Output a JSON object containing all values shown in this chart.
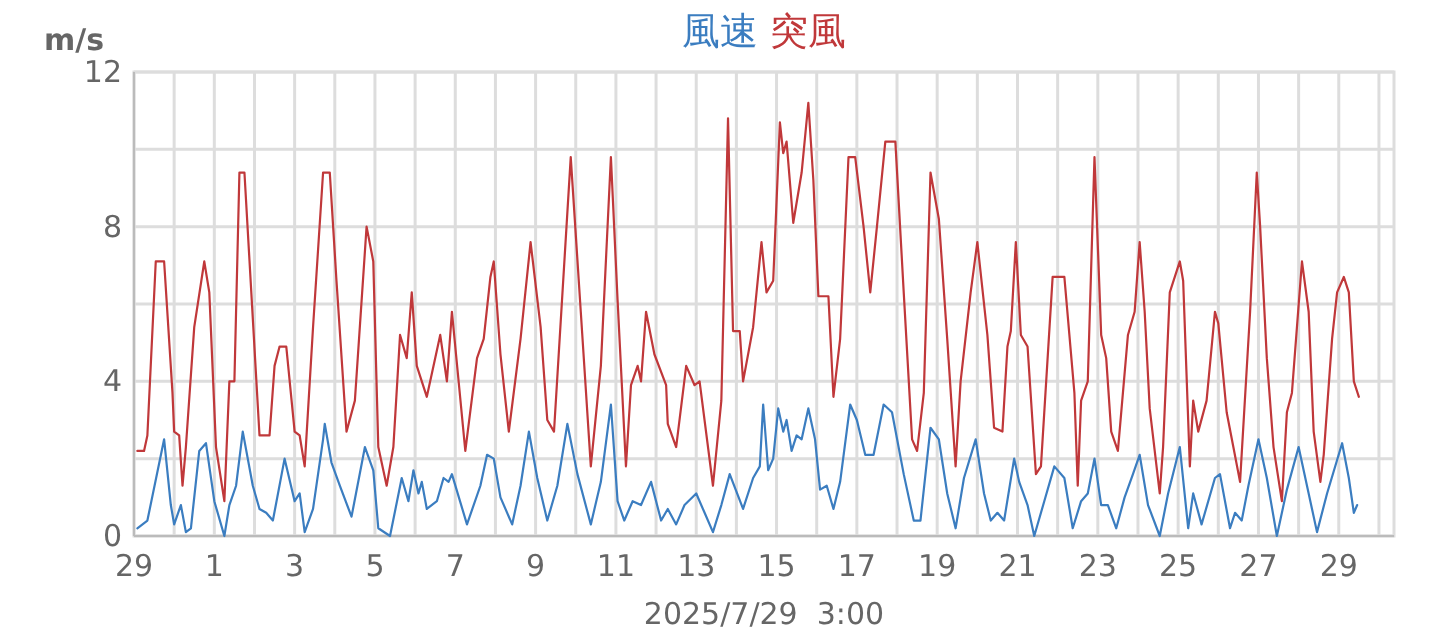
{
  "chart_data": {
    "type": "line",
    "ylabel": "m/s",
    "grid": true,
    "annotations": [
      "2025/7/29  3:00"
    ],
    "xlim": [
      "2025-06-29",
      "2025-07-30T09:00"
    ],
    "ylim": [
      0,
      12
    ],
    "yticks": [
      0,
      {
        "value": 2,
        "label": null
      },
      4,
      {
        "value": 6,
        "label": null
      },
      8,
      {
        "value": 10,
        "label": null
      },
      12
    ],
    "xticks": [
      {
        "value": "2025-06-29",
        "label": "29"
      },
      {
        "value": "2025-06-30",
        "label": null
      },
      {
        "value": "2025-07-01",
        "label": "1"
      },
      {
        "value": "2025-07-02",
        "label": null
      },
      {
        "value": "2025-07-03",
        "label": "3"
      },
      {
        "value": "2025-07-04",
        "label": null
      },
      {
        "value": "2025-07-05",
        "label": "5"
      },
      {
        "value": "2025-07-06",
        "label": null
      },
      {
        "value": "2025-07-07",
        "label": "7"
      },
      {
        "value": "2025-07-08",
        "label": null
      },
      {
        "value": "2025-07-09",
        "label": "9"
      },
      {
        "value": "2025-07-10",
        "label": null
      },
      {
        "value": "2025-07-11",
        "label": "11"
      },
      {
        "value": "2025-07-12",
        "label": null
      },
      {
        "value": "2025-07-13",
        "label": "13"
      },
      {
        "value": "2025-07-14",
        "label": null
      },
      {
        "value": "2025-07-15",
        "label": "15"
      },
      {
        "value": "2025-07-16",
        "label": null
      },
      {
        "value": "2025-07-17",
        "label": "17"
      },
      {
        "value": "2025-07-18",
        "label": null
      },
      {
        "value": "2025-07-19",
        "label": "19"
      },
      {
        "value": "2025-07-20",
        "label": null
      },
      {
        "value": "2025-07-21",
        "label": "21"
      },
      {
        "value": "2025-07-22",
        "label": null
      },
      {
        "value": "2025-07-23",
        "label": "23"
      },
      {
        "value": "2025-07-24",
        "label": null
      },
      {
        "value": "2025-07-25",
        "label": "25"
      },
      {
        "value": "2025-07-26",
        "label": null
      },
      {
        "value": "2025-07-27",
        "label": "27"
      },
      {
        "value": "2025-07-28",
        "label": null
      },
      {
        "value": "2025-07-29",
        "label": "29"
      },
      {
        "value": "2025-07-30",
        "label": null
      }
    ],
    "series": [
      {
        "name": "風速",
        "color": "#3b7dc0",
        "x": [
          "2025-06-29T02:00",
          "2025-06-29T08:00",
          "2025-06-29T18:00",
          "2025-06-29T22:00",
          "2025-06-30T00:00",
          "2025-06-30T04:00",
          "2025-06-30T07:00",
          "2025-06-30T10:00",
          "2025-06-30T15:00",
          "2025-06-30T19:00",
          "2025-07-01T00:00",
          "2025-07-01T06:00",
          "2025-07-01T09:00",
          "2025-07-01T13:00",
          "2025-07-01T17:00",
          "2025-07-01T23:00",
          "2025-07-02T03:00",
          "2025-07-02T07:00",
          "2025-07-02T11:00",
          "2025-07-02T18:00",
          "2025-07-03T00:00",
          "2025-07-03T03:00",
          "2025-07-03T06:00",
          "2025-07-03T11:00",
          "2025-07-03T17:00",
          "2025-07-03T18:00",
          "2025-07-03T22:00",
          "2025-07-04T03:00",
          "2025-07-04T10:00",
          "2025-07-04T18:00",
          "2025-07-04T23:00",
          "2025-07-05T02:00",
          "2025-07-05T09:00",
          "2025-07-05T16:00",
          "2025-07-05T20:00",
          "2025-07-05T23:00",
          "2025-07-06T02:00",
          "2025-07-06T04:00",
          "2025-07-06T07:00",
          "2025-07-06T13:00",
          "2025-07-06T17:00",
          "2025-07-06T20:00",
          "2025-07-06T22:00",
          "2025-07-07T07:00",
          "2025-07-07T15:00",
          "2025-07-07T19:00",
          "2025-07-07T23:00",
          "2025-07-08T03:00",
          "2025-07-08T10:00",
          "2025-07-08T15:00",
          "2025-07-08T20:00",
          "2025-07-09T01:00",
          "2025-07-09T07:00",
          "2025-07-09T13:00",
          "2025-07-09T19:00",
          "2025-07-10T01:00",
          "2025-07-10T09:00",
          "2025-07-10T15:00",
          "2025-07-10T21:00",
          "2025-07-11T01:00",
          "2025-07-11T05:00",
          "2025-07-11T10:00",
          "2025-07-11T15:00",
          "2025-07-11T21:00",
          "2025-07-12T03:00",
          "2025-07-12T07:00",
          "2025-07-12T12:00",
          "2025-07-12T17:00",
          "2025-07-13T00:00",
          "2025-07-13T05:00",
          "2025-07-13T10:00",
          "2025-07-13T15:00",
          "2025-07-13T20:00",
          "2025-07-14T04:00",
          "2025-07-14T10:00",
          "2025-07-14T14:00",
          "2025-07-14T16:00",
          "2025-07-14T19:00",
          "2025-07-14T22:00",
          "2025-07-15T01:00",
          "2025-07-15T04:00",
          "2025-07-15T06:00",
          "2025-07-15T09:00",
          "2025-07-15T12:00",
          "2025-07-15T15:00",
          "2025-07-15T19:00",
          "2025-07-15T23:00",
          "2025-07-16T02:00",
          "2025-07-16T06:00",
          "2025-07-16T10:00",
          "2025-07-16T14:00",
          "2025-07-16T20:00",
          "2025-07-17T00:00",
          "2025-07-17T05:00",
          "2025-07-17T10:00",
          "2025-07-17T16:00",
          "2025-07-17T21:00",
          "2025-07-18T04:00",
          "2025-07-18T10:00",
          "2025-07-18T14:00",
          "2025-07-18T20:00",
          "2025-07-19T01:00",
          "2025-07-19T06:00",
          "2025-07-19T11:00",
          "2025-07-19T16:00",
          "2025-07-19T23:00",
          "2025-07-20T04:00",
          "2025-07-20T08:00",
          "2025-07-20T12:00",
          "2025-07-20T16:00",
          "2025-07-20T22:00",
          "2025-07-21T01:00",
          "2025-07-21T06:00",
          "2025-07-21T10:00",
          "2025-07-21T16:00",
          "2025-07-21T22:00",
          "2025-07-22T04:00",
          "2025-07-22T09:00",
          "2025-07-22T14:00",
          "2025-07-22T18:00",
          "2025-07-22T22:00",
          "2025-07-23T02:00",
          "2025-07-23T06:00",
          "2025-07-23T11:00",
          "2025-07-23T16:00",
          "2025-07-23T21:00",
          "2025-07-24T01:00",
          "2025-07-24T06:00",
          "2025-07-24T13:00",
          "2025-07-24T18:00",
          "2025-07-25T01:00",
          "2025-07-25T06:00",
          "2025-07-25T09:00",
          "2025-07-25T14:00",
          "2025-07-25T22:00",
          "2025-07-26T01:00",
          "2025-07-26T07:00",
          "2025-07-26T10:00",
          "2025-07-26T14:00",
          "2025-07-26T18:00",
          "2025-07-27T00:00",
          "2025-07-27T05:00",
          "2025-07-27T11:00",
          "2025-07-27T17:00",
          "2025-07-28T00:00",
          "2025-07-28T05:00",
          "2025-07-28T11:00",
          "2025-07-28T17:00",
          "2025-07-29T02:00",
          "2025-07-29T06:00",
          "2025-07-29T09:00",
          "2025-07-29T11:00"
        ],
        "values": [
          0.2,
          0.4,
          2.5,
          0.8,
          0.3,
          0.8,
          0.1,
          0.2,
          2.2,
          2.4,
          0.9,
          0.0,
          0.8,
          1.3,
          2.7,
          1.3,
          0.7,
          0.6,
          0.4,
          2.0,
          0.9,
          1.1,
          0.1,
          0.7,
          2.5,
          2.9,
          1.9,
          1.3,
          0.5,
          2.3,
          1.7,
          0.2,
          0.0,
          1.5,
          0.9,
          1.7,
          1.1,
          1.4,
          0.7,
          0.9,
          1.5,
          1.4,
          1.6,
          0.3,
          1.3,
          2.1,
          2.0,
          1.0,
          0.3,
          1.3,
          2.7,
          1.5,
          0.4,
          1.3,
          2.9,
          1.6,
          0.3,
          1.4,
          3.4,
          0.9,
          0.4,
          0.9,
          0.8,
          1.4,
          0.4,
          0.7,
          0.3,
          0.8,
          1.1,
          0.6,
          0.1,
          0.8,
          1.6,
          0.7,
          1.5,
          1.8,
          3.4,
          1.7,
          2.0,
          3.3,
          2.7,
          3.0,
          2.2,
          2.6,
          2.5,
          3.3,
          2.5,
          1.2,
          1.3,
          0.7,
          1.4,
          3.4,
          3.0,
          2.1,
          2.1,
          3.4,
          3.2,
          1.6,
          0.4,
          0.4,
          2.8,
          2.5,
          1.1,
          0.2,
          1.5,
          2.5,
          1.1,
          0.4,
          0.6,
          0.4,
          2.0,
          1.4,
          0.8,
          0.0,
          0.9,
          1.8,
          1.5,
          0.2,
          0.9,
          1.1,
          2.0,
          0.8,
          0.8,
          0.2,
          1.0,
          1.6,
          2.1,
          0.8,
          0.0,
          1.1,
          2.3,
          0.2,
          1.1,
          0.3,
          1.5,
          1.6,
          0.2,
          0.6,
          0.4,
          1.3,
          2.5,
          1.5,
          0.0,
          1.2,
          2.3,
          1.3,
          0.1,
          1.1,
          2.4,
          1.5,
          0.6,
          0.8
        ]
      },
      {
        "name": "突風",
        "color": "#c0383a",
        "x": [
          "2025-06-29T02:00",
          "2025-06-29T06:00",
          "2025-06-29T08:00",
          "2025-06-29T13:00",
          "2025-06-29T18:00",
          "2025-06-29T23:00",
          "2025-06-30T00:00",
          "2025-06-30T03:00",
          "2025-06-30T05:00",
          "2025-06-30T07:00",
          "2025-06-30T12:00",
          "2025-06-30T18:00",
          "2025-06-30T21:00",
          "2025-07-01T01:00",
          "2025-07-01T06:00",
          "2025-07-01T09:00",
          "2025-07-01T12:00",
          "2025-07-01T15:00",
          "2025-07-01T18:00",
          "2025-07-02T03:00",
          "2025-07-02T09:00",
          "2025-07-02T12:00",
          "2025-07-02T15:00",
          "2025-07-02T19:00",
          "2025-07-03T00:00",
          "2025-07-03T03:00",
          "2025-07-03T06:00",
          "2025-07-03T11:00",
          "2025-07-03T17:00",
          "2025-07-03T21:00",
          "2025-07-04T01:00",
          "2025-07-04T07:00",
          "2025-07-04T12:00",
          "2025-07-04T19:00",
          "2025-07-04T23:00",
          "2025-07-05T02:00",
          "2025-07-05T07:00",
          "2025-07-05T11:00",
          "2025-07-05T15:00",
          "2025-07-05T19:00",
          "2025-07-05T22:00",
          "2025-07-06T01:00",
          "2025-07-06T07:00",
          "2025-07-06T15:00",
          "2025-07-06T17:00",
          "2025-07-06T19:00",
          "2025-07-06T22:00",
          "2025-07-07T06:00",
          "2025-07-07T13:00",
          "2025-07-07T17:00",
          "2025-07-07T21:00",
          "2025-07-07T23:00",
          "2025-07-08T03:00",
          "2025-07-08T08:00",
          "2025-07-08T15:00",
          "2025-07-08T21:00",
          "2025-07-09T03:00",
          "2025-07-09T07:00",
          "2025-07-09T11:00",
          "2025-07-09T21:00",
          "2025-07-10T03:00",
          "2025-07-10T09:00",
          "2025-07-10T15:00",
          "2025-07-10T21:00",
          "2025-07-11T01:00",
          "2025-07-11T06:00",
          "2025-07-11T09:00",
          "2025-07-11T13:00",
          "2025-07-11T15:00",
          "2025-07-11T18:00",
          "2025-07-11T23:00",
          "2025-07-12T06:00",
          "2025-07-12T07:00",
          "2025-07-12T12:00",
          "2025-07-12T18:00",
          "2025-07-12T23:00",
          "2025-07-13T02:00",
          "2025-07-13T10:00",
          "2025-07-13T15:00",
          "2025-07-13T19:00",
          "2025-07-13T22:00",
          "2025-07-14T02:00",
          "2025-07-14T04:00",
          "2025-07-14T10:00",
          "2025-07-14T15:00",
          "2025-07-14T18:00",
          "2025-07-14T22:00",
          "2025-07-15T02:00",
          "2025-07-15T04:00",
          "2025-07-15T06:00",
          "2025-07-15T10:00",
          "2025-07-15T15:00",
          "2025-07-15T19:00",
          "2025-07-15T22:00",
          "2025-07-16T01:00",
          "2025-07-16T07:00",
          "2025-07-16T10:00",
          "2025-07-16T14:00",
          "2025-07-16T19:00",
          "2025-07-16T23:00",
          "2025-07-17T04:00",
          "2025-07-17T08:00",
          "2025-07-17T12:00",
          "2025-07-17T17:00",
          "2025-07-17T23:00",
          "2025-07-18T04:00",
          "2025-07-18T09:00",
          "2025-07-18T12:00",
          "2025-07-18T16:00",
          "2025-07-18T20:00",
          "2025-07-19T01:00",
          "2025-07-19T06:00",
          "2025-07-19T11:00",
          "2025-07-19T14:00",
          "2025-07-19T20:00",
          "2025-07-20T00:00",
          "2025-07-20T06:00",
          "2025-07-20T10:00",
          "2025-07-20T15:00",
          "2025-07-20T18:00",
          "2025-07-20T20:00",
          "2025-07-20T23:00",
          "2025-07-21T02:00",
          "2025-07-21T06:00",
          "2025-07-21T11:00",
          "2025-07-21T14:00",
          "2025-07-21T21:00",
          "2025-07-22T04:00",
          "2025-07-22T10:00",
          "2025-07-22T12:00",
          "2025-07-22T14:00",
          "2025-07-22T18:00",
          "2025-07-22T22:00",
          "2025-07-23T02:00",
          "2025-07-23T05:00",
          "2025-07-23T08:00",
          "2025-07-23T12:00",
          "2025-07-23T18:00",
          "2025-07-23T22:00",
          "2025-07-24T01:00",
          "2025-07-24T04:00",
          "2025-07-24T07:00",
          "2025-07-24T13:00",
          "2025-07-24T15:00",
          "2025-07-24T19:00",
          "2025-07-25T01:00",
          "2025-07-25T03:00",
          "2025-07-25T07:00",
          "2025-07-25T09:00",
          "2025-07-25T12:00",
          "2025-07-25T17:00",
          "2025-07-25T22:00",
          "2025-07-26T00:00",
          "2025-07-26T05:00",
          "2025-07-26T09:00",
          "2025-07-26T13:00",
          "2025-07-26T19:00",
          "2025-07-26T23:00",
          "2025-07-27T01:00",
          "2025-07-27T05:00",
          "2025-07-27T09:00",
          "2025-07-27T14:00",
          "2025-07-27T17:00",
          "2025-07-27T20:00",
          "2025-07-28T02:00",
          "2025-07-28T06:00",
          "2025-07-28T09:00",
          "2025-07-28T13:00",
          "2025-07-28T15:00",
          "2025-07-28T20:00",
          "2025-07-28T23:00",
          "2025-07-29T03:00",
          "2025-07-29T06:00",
          "2025-07-29T09:00",
          "2025-07-29T12:00"
        ],
        "values": [
          2.2,
          2.2,
          2.6,
          7.1,
          7.1,
          3.7,
          2.7,
          2.6,
          1.3,
          2.3,
          5.4,
          7.1,
          6.3,
          2.3,
          0.9,
          4.0,
          4.0,
          9.4,
          9.4,
          2.6,
          2.6,
          4.4,
          4.9,
          4.9,
          2.7,
          2.6,
          1.8,
          5.4,
          9.4,
          9.4,
          6.6,
          2.7,
          3.5,
          8.0,
          7.1,
          2.3,
          1.3,
          2.3,
          5.2,
          4.6,
          6.3,
          4.4,
          3.6,
          5.2,
          4.6,
          4.0,
          5.8,
          2.2,
          4.6,
          5.1,
          6.7,
          7.1,
          4.7,
          2.7,
          5.1,
          7.6,
          5.4,
          3.0,
          2.7,
          9.8,
          5.8,
          1.8,
          4.4,
          9.8,
          6.1,
          1.8,
          3.9,
          4.4,
          4.0,
          5.8,
          4.7,
          3.9,
          2.9,
          2.3,
          4.4,
          3.9,
          4.0,
          1.3,
          3.5,
          10.8,
          5.3,
          5.3,
          4.0,
          5.4,
          7.6,
          6.3,
          6.6,
          10.7,
          9.9,
          10.2,
          8.1,
          9.4,
          11.2,
          9.2,
          6.2,
          6.2,
          3.6,
          5.1,
          9.8,
          9.8,
          8.0,
          6.3,
          8.0,
          10.2,
          10.2,
          6.3,
          2.5,
          2.2,
          3.7,
          9.4,
          8.2,
          5.1,
          1.8,
          4.0,
          6.3,
          7.6,
          5.2,
          2.8,
          2.7,
          4.9,
          5.3,
          7.6,
          5.2,
          4.9,
          1.6,
          1.8,
          6.7,
          6.7,
          3.7,
          1.3,
          3.5,
          4.0,
          9.8,
          5.2,
          4.6,
          2.7,
          2.2,
          5.2,
          5.8,
          7.6,
          5.8,
          3.3,
          1.1,
          2.3,
          6.3,
          7.1,
          6.6,
          1.8,
          3.5,
          2.7,
          3.5,
          5.8,
          5.5,
          3.2,
          2.3,
          1.4,
          5.8,
          9.4,
          8.0,
          4.6,
          2.3,
          0.9,
          3.2,
          3.7,
          7.1,
          5.8,
          2.7,
          1.4,
          2.1,
          5.1,
          6.3,
          6.7,
          6.3,
          4.0,
          3.6
        ]
      }
    ]
  }
}
